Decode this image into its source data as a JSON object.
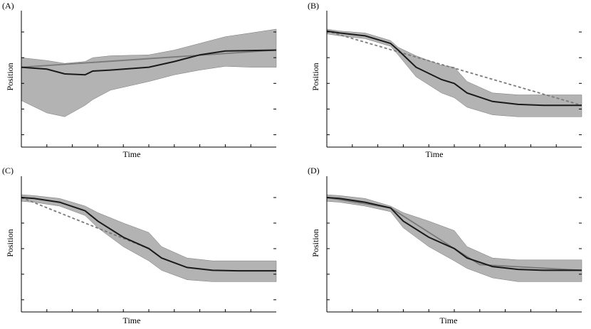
{
  "figure": {
    "background": "#ffffff",
    "band_color": "#b3b3b3",
    "mean_color": "#1a1a1a",
    "ref_color": "#7a7a7a"
  },
  "chart_data": [
    {
      "type": "area",
      "panel_label": "(A)",
      "xlabel": "Time",
      "ylabel": "Position",
      "xlim": [
        0,
        100
      ],
      "ylim": [
        0,
        100
      ],
      "x": [
        0,
        10,
        17,
        25,
        28,
        35,
        50,
        60,
        70,
        80,
        90,
        100
      ],
      "mean": [
        60,
        58,
        53,
        52,
        56,
        57,
        60,
        66,
        73,
        77,
        77.5,
        78
      ],
      "upper": [
        70,
        67,
        64,
        66,
        70,
        72,
        73,
        78,
        85,
        92,
        96,
        100
      ],
      "lower": [
        25,
        12,
        8,
        20,
        26,
        36,
        45,
        52,
        57,
        61,
        60,
        60
      ],
      "reference": {
        "style": "solid",
        "x": [
          0,
          100
        ],
        "y": [
          60,
          78
        ]
      }
    },
    {
      "type": "area",
      "panel_label": "(B)",
      "xlabel": "Time",
      "ylabel": "Position",
      "xlim": [
        0,
        100
      ],
      "ylim": [
        0,
        100
      ],
      "x": [
        0,
        5,
        15,
        25,
        28,
        35,
        45,
        50,
        55,
        65,
        75,
        85,
        100
      ],
      "mean": [
        98,
        96,
        93,
        85,
        78,
        60,
        47,
        43,
        33,
        24,
        21,
        20,
        20
      ],
      "upper": [
        100,
        98,
        96,
        88,
        81,
        72,
        62,
        60,
        45,
        33,
        31,
        31,
        31
      ],
      "lower": [
        95,
        93,
        90,
        82,
        73,
        50,
        33,
        28,
        18,
        10,
        8,
        8,
        8
      ],
      "reference": {
        "style": "dashed",
        "x": [
          0,
          100
        ],
        "y": [
          98,
          20
        ]
      }
    },
    {
      "type": "area",
      "panel_label": "(C)",
      "xlabel": "Time",
      "ylabel": "Position",
      "xlim": [
        0,
        100
      ],
      "ylim": [
        0,
        100
      ],
      "x": [
        0,
        5,
        15,
        25,
        30,
        40,
        50,
        55,
        65,
        75,
        85,
        100
      ],
      "mean": [
        97,
        96,
        92,
        83,
        72,
        55,
        43,
        33,
        23,
        20,
        19.5,
        19.5
      ],
      "upper": [
        100,
        99,
        96,
        88,
        81,
        70,
        60,
        45,
        33,
        30,
        30,
        30
      ],
      "lower": [
        93,
        92,
        88,
        78,
        65,
        45,
        30,
        20,
        10,
        8,
        8,
        8
      ],
      "reference": {
        "style": "dashed",
        "x": [
          0,
          50
        ],
        "y": [
          97,
          43
        ]
      }
    },
    {
      "type": "area",
      "panel_label": "(D)",
      "xlabel": "Time",
      "ylabel": "Position",
      "xlim": [
        0,
        100
      ],
      "ylim": [
        0,
        100
      ],
      "x": [
        0,
        5,
        15,
        25,
        30,
        40,
        50,
        55,
        65,
        75,
        85,
        100
      ],
      "mean": [
        97,
        96,
        92,
        86,
        72,
        55,
        43,
        33,
        24,
        21,
        20,
        20
      ],
      "upper": [
        100,
        99,
        96,
        88,
        81,
        72,
        62,
        45,
        33,
        31,
        31,
        31
      ],
      "lower": [
        93,
        92,
        88,
        82,
        65,
        45,
        30,
        22,
        12,
        8,
        8,
        8
      ],
      "reference": {
        "style": "solid",
        "x": [
          0,
          25,
          50,
          60,
          100
        ],
        "y": [
          97,
          86,
          43,
          26,
          20
        ]
      }
    }
  ]
}
